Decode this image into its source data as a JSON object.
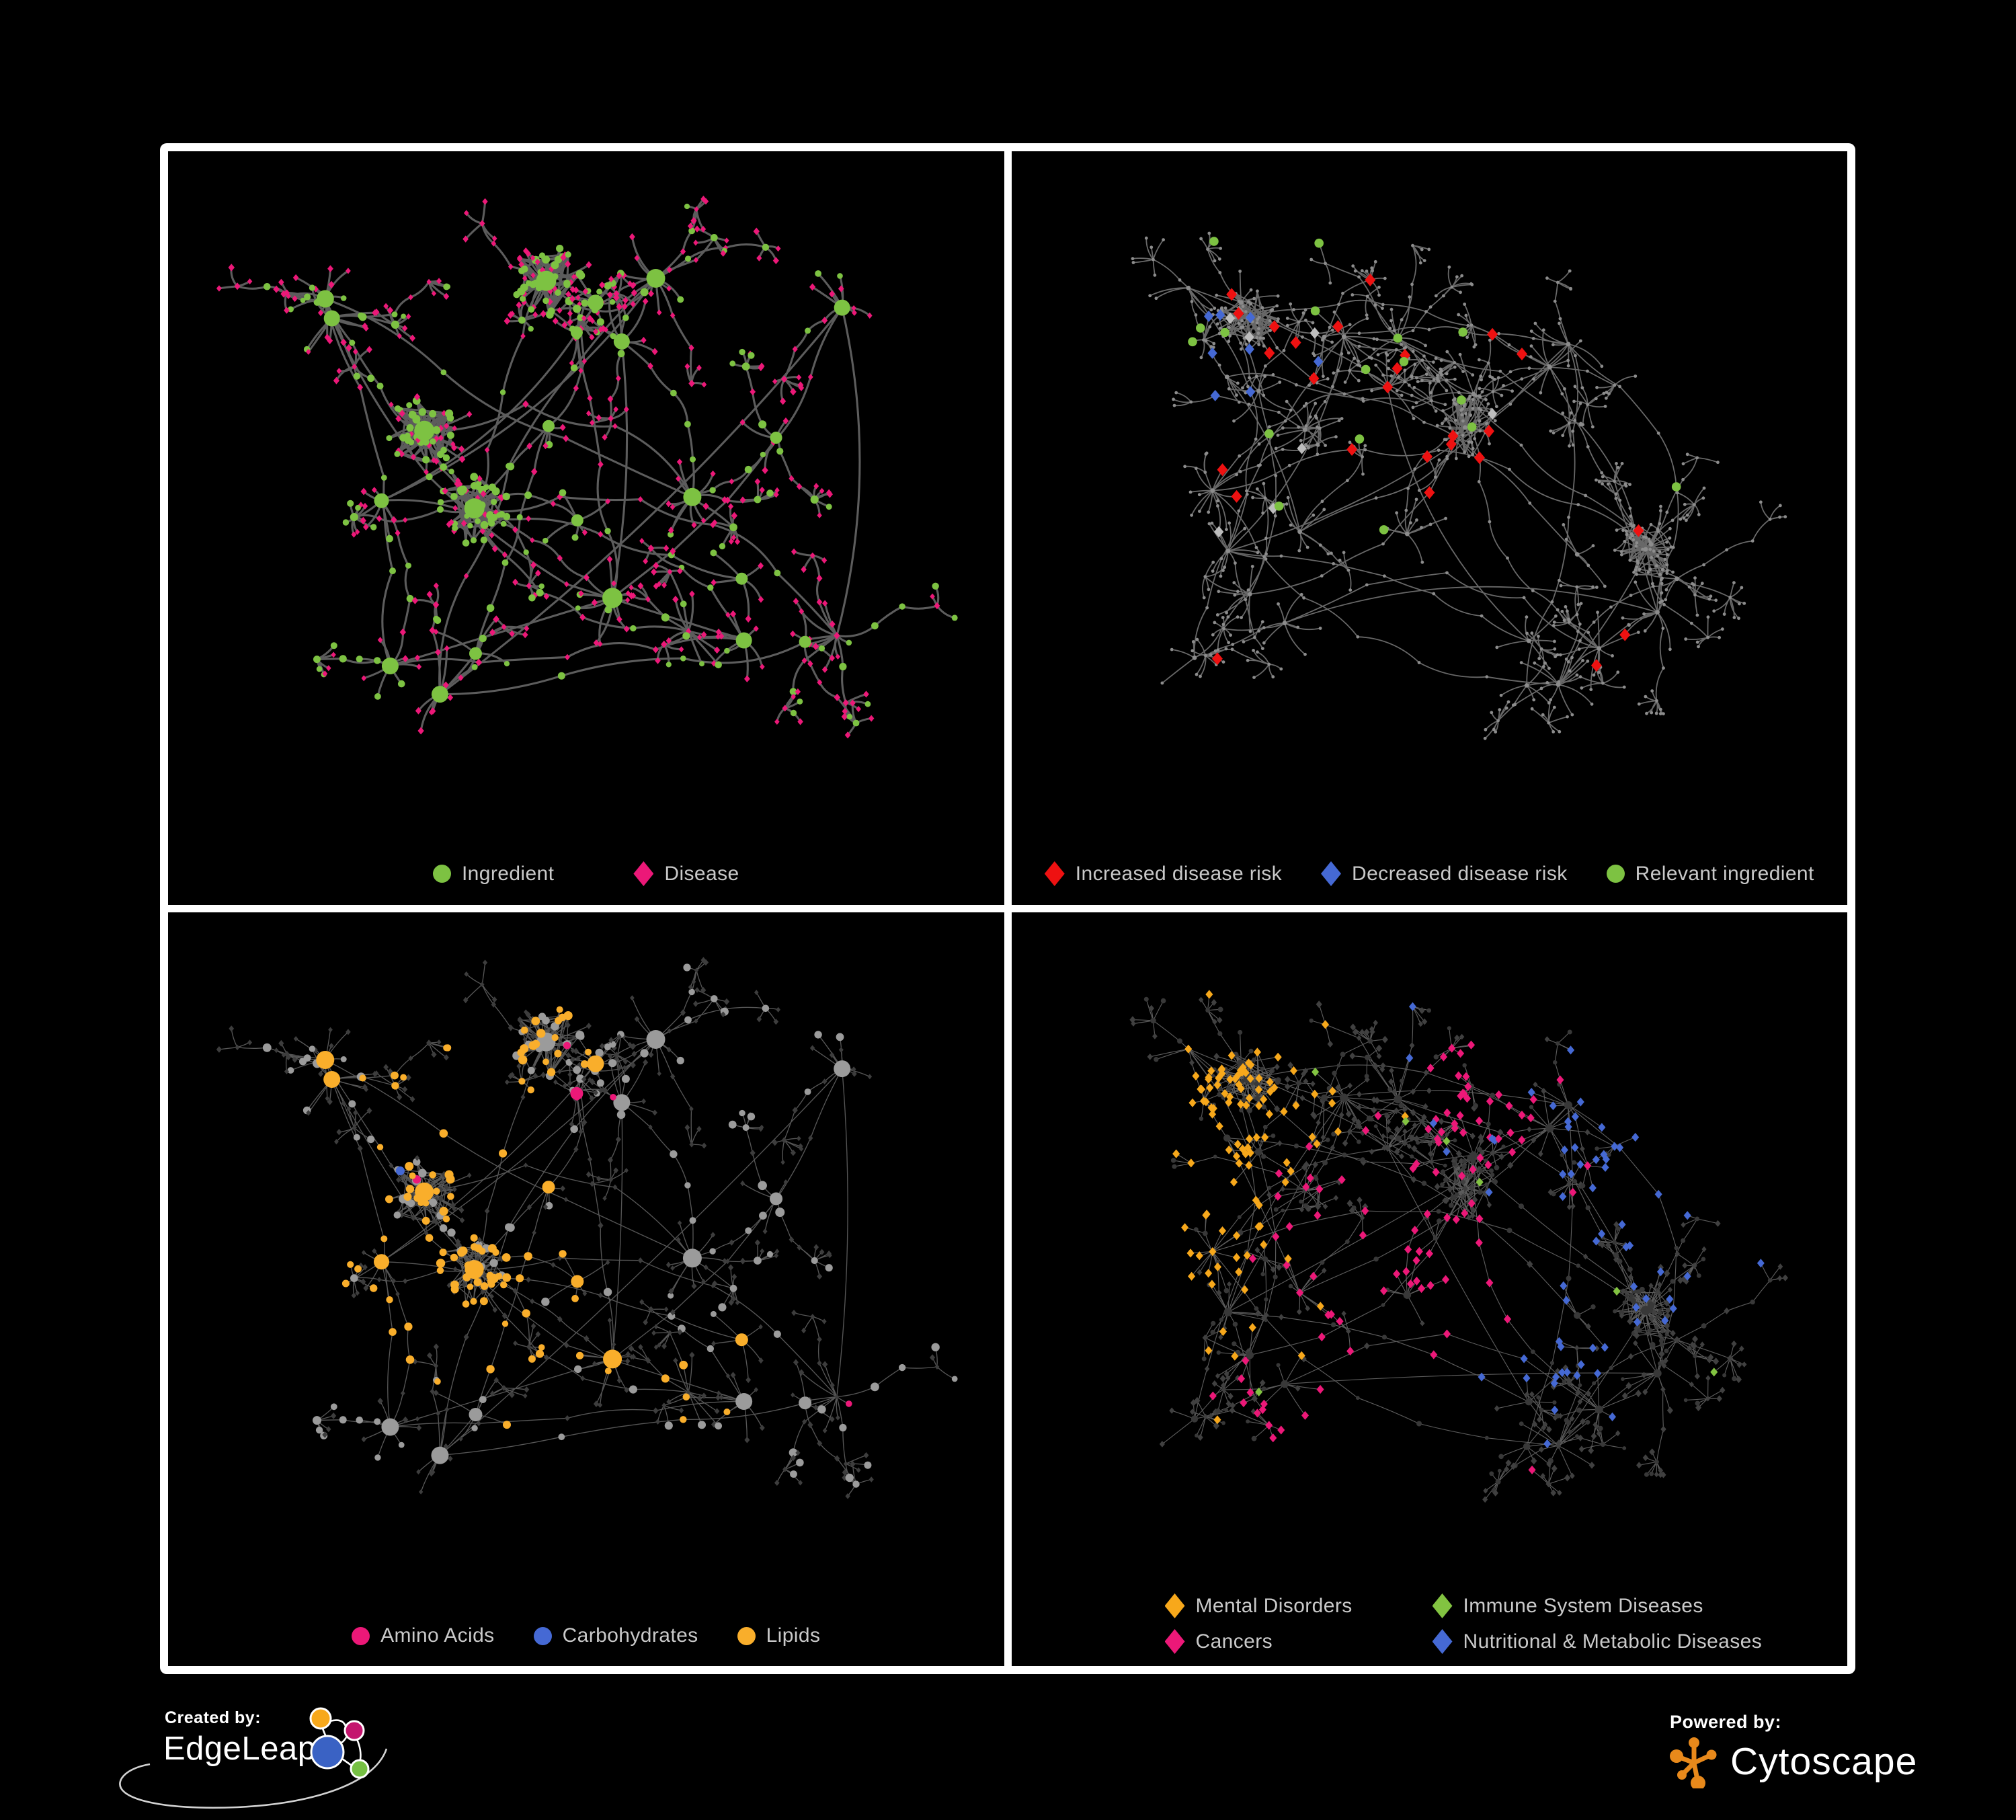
{
  "page": {
    "background": "#000000",
    "frame_color": "#ffffff"
  },
  "footer": {
    "created_by_label": "Created by:",
    "edgeleap_name": "EdgeLeap",
    "powered_by_label": "Powered by:",
    "cytoscape_name": "Cytoscape",
    "cytoscape_orange": "#E8891B",
    "edgeleap_logo_colors": {
      "orange": "#F7A81B",
      "magenta": "#C4156E",
      "blue": "#3A62C4",
      "green": "#76C043"
    }
  },
  "panels": [
    {
      "id": "ingredient-disease",
      "legend": {
        "layout": "row",
        "items": [
          {
            "label": "Ingredient",
            "shape": "circle",
            "color": "#7DC242"
          },
          {
            "label": "Disease",
            "shape": "diamond",
            "color": "#EC1878"
          }
        ]
      },
      "net": {
        "seed": 7,
        "anchors": 24,
        "chain": [
          2,
          4
        ],
        "cross": 8,
        "burst": [
          4,
          14
        ],
        "burstR": 72,
        "extend": 0.16,
        "fan": [
          3,
          8
        ],
        "hairballs": 3,
        "hair": [
          34,
          50
        ],
        "hairR": 54,
        "diamondProb": {
          "hub": 0.05,
          "sub": 0.5,
          "chain": 0.62,
          "leaf": 0.8,
          "hair": 0.45
        }
      },
      "paint": {
        "edge": {
          "color": "#676767",
          "width": 3.1,
          "opacity": 0.9,
          "curve": 0.45
        },
        "diamond": {
          "color": "#EC1878",
          "s": 4.9
        },
        "circle": {
          "color": "#7DC242",
          "hubBase": 6,
          "hubDeg": 0.5,
          "hubMax": 15,
          "r": {
            "sub": 5.2,
            "chain": 4.8,
            "leaf": 4.6,
            "hair": 5.1
          }
        }
      }
    },
    {
      "id": "disease-risk",
      "legend": {
        "layout": "row",
        "items": [
          {
            "label": "Increased disease risk",
            "shape": "diamond",
            "color": "#EE1111"
          },
          {
            "label": "Decreased disease risk",
            "shape": "diamond",
            "color": "#4569D4"
          },
          {
            "label": "Relevant ingredient",
            "shape": "circle",
            "color": "#7DC242"
          }
        ]
      },
      "net": {
        "seed": 13,
        "anchors": 30,
        "chain": [
          3,
          6
        ],
        "cross": 6,
        "burst": [
          3,
          12
        ],
        "burstR": 64,
        "extend": 0.22,
        "fan": [
          3,
          9
        ],
        "hairballs": 3,
        "hair": [
          30,
          44
        ],
        "hairR": 48,
        "diamondProb": {
          "hub": 0.25,
          "sub": 0.55,
          "chain": 0.6,
          "leaf": 0.78,
          "hair": 0.5
        }
      },
      "paint": {
        "edge": {
          "color": "#7B7B7B",
          "width": 1.8,
          "opacity": 0.85,
          "curve": 0.4
        },
        "base": {
          "color": "#8C8C8C",
          "r": 2.4,
          "hubR": 3.4
        },
        "highlights": [
          {
            "shape": "diamond",
            "color": "#EE1111",
            "size": 9.5,
            "count": 26,
            "focals": [
              [
                0.3,
                0.3,
                0.14
              ],
              [
                0.5,
                0.4,
                0.1
              ],
              [
                0.6,
                0.33,
                0.08
              ],
              [
                0.38,
                0.6,
                0.18
              ],
              [
                0.74,
                0.72,
                0.07
              ]
            ]
          },
          {
            "shape": "diamond",
            "color": "#4569D4",
            "size": 8.5,
            "count": 8,
            "focals": [
              [
                0.13,
                0.4,
                0.05
              ],
              [
                0.86,
                0.17,
                0.03
              ],
              [
                0.27,
                0.3,
                0.05
              ]
            ]
          },
          {
            "shape": "diamond",
            "color": "#BDBDBD",
            "size": 8.5,
            "count": 7,
            "focals": [
              [
                0.33,
                0.35,
                0.1
              ],
              [
                0.55,
                0.52,
                0.1
              ]
            ]
          },
          {
            "shape": "circle",
            "color": "#7DC242",
            "size": 6.8,
            "count": 17,
            "focals": [
              [
                0.28,
                0.32,
                0.15
              ],
              [
                0.52,
                0.46,
                0.13
              ],
              [
                0.14,
                0.52,
                0.07
              ],
              [
                0.79,
                0.4,
                0.09
              ]
            ]
          }
        ]
      }
    },
    {
      "id": "macronutrients",
      "legend": {
        "layout": "row",
        "items": [
          {
            "label": "Amino Acids",
            "shape": "circle",
            "color": "#EC1878"
          },
          {
            "label": "Carbohydrates",
            "shape": "circle",
            "color": "#4569D4"
          },
          {
            "label": "Lipids",
            "shape": "circle",
            "color": "#F9AE2B"
          }
        ]
      },
      "net": {
        "seed": 7,
        "anchors": 24,
        "chain": [
          2,
          4
        ],
        "cross": 8,
        "burst": [
          4,
          14
        ],
        "burstR": 72,
        "extend": 0.16,
        "fan": [
          3,
          8
        ],
        "hairballs": 3,
        "hair": [
          34,
          50
        ],
        "hairR": 54,
        "diamondProb": {
          "hub": 0.05,
          "sub": 0.5,
          "chain": 0.62,
          "leaf": 0.8,
          "hair": 0.45
        }
      },
      "paint": {
        "edge": {
          "color": "#ABABAB",
          "width": 1.35,
          "opacity": 0.5,
          "curve": 0.18
        },
        "diamond": {
          "color": "#3D3D3D",
          "s": 4.3
        },
        "circle": {
          "color": "#9B9B9B",
          "hubBase": 6.5,
          "hubDeg": 0.5,
          "hubMax": 14,
          "r": {
            "sub": 5.8,
            "chain": 5.4,
            "leaf": 5.2,
            "hair": 5.7
          },
          "cats": [
            {
              "color": "#F9AE2B",
              "scale": 1.15,
              "focals": [
                [
                  0.34,
                  0.2,
                  0.1
                ],
                [
                  0.3,
                  0.5,
                  0.08
                ],
                [
                  0.44,
                  0.58,
                  0.06
                ],
                [
                  0.65,
                  0.62,
                  0.05
                ],
                [
                  0.27,
                  0.05,
                  0.04
                ]
              ]
            },
            {
              "color": "#4569D4",
              "scale": 0.9,
              "focals": [
                [
                  0.37,
                  0.26,
                  0.05
                ],
                [
                  0.2,
                  0.42,
                  0.03
                ],
                [
                  0.86,
                  0.62,
                  0.03
                ],
                [
                  0.02,
                  0.28,
                  0.02
                ]
              ]
            },
            {
              "color": "#EC1878",
              "flat": 0.06,
              "scale": 0.8,
              "focals": [
                [
                  0.12,
                  0.56,
                  0.05
                ],
                [
                  0.52,
                  0.74,
                  0.05
                ],
                [
                  0.1,
                  0.3,
                  0.04
                ],
                [
                  0.55,
                  0.02,
                  0.03
                ],
                [
                  0.95,
                  0.3,
                  0.04
                ]
              ]
            }
          ]
        }
      }
    },
    {
      "id": "disease-classes",
      "legend": {
        "layout": "grid",
        "items": [
          {
            "label": "Mental Disorders",
            "shape": "diamond",
            "color": "#F7A81B"
          },
          {
            "label": "Immune System Diseases",
            "shape": "diamond",
            "color": "#82C341"
          },
          {
            "label": "Cancers",
            "shape": "diamond",
            "color": "#EC1878"
          },
          {
            "label": "Nutritional & Metabolic Diseases",
            "shape": "diamond",
            "color": "#4569D4"
          }
        ]
      },
      "net": {
        "seed": 13,
        "anchors": 30,
        "chain": [
          3,
          6
        ],
        "cross": 6,
        "burst": [
          3,
          12
        ],
        "burstR": 64,
        "extend": 0.22,
        "fan": [
          3,
          9
        ],
        "hairballs": 3,
        "hair": [
          30,
          44
        ],
        "hairR": 48,
        "diamondProb": {
          "hub": 0.25,
          "sub": 0.55,
          "chain": 0.6,
          "leaf": 0.78,
          "hair": 0.5
        }
      },
      "paint": {
        "edge": {
          "color": "#737373",
          "width": 1.15,
          "opacity": 0.8,
          "curve": 0.05
        },
        "circle": {
          "color": "#383838",
          "hubBase": 4.5,
          "hubDeg": 0.12,
          "hubMax": 7,
          "r": {
            "sub": 3.6,
            "chain": 3.4,
            "leaf": 3.3,
            "hair": 3.6
          }
        },
        "diamond": {
          "color": "#404040",
          "s": 4.8,
          "catSize": 6.6,
          "cats": [
            {
              "color": "#F7A81B",
              "scale": 1.25,
              "focals": [
                [
                  0.16,
                  0.4,
                  0.1
                ],
                [
                  0.3,
                  0.09,
                  0.05
                ],
                [
                  0.13,
                  0.61,
                  0.05
                ],
                [
                  0.24,
                  0.28,
                  0.06
                ]
              ]
            },
            {
              "color": "#EC1878",
              "scale": 1.1,
              "focals": [
                [
                  0.46,
                  0.47,
                  0.08
                ],
                [
                  0.57,
                  0.22,
                  0.05
                ],
                [
                  0.33,
                  0.67,
                  0.04
                ],
                [
                  0.63,
                  0.83,
                  0.035
                ],
                [
                  0.95,
                  0.25,
                  0.04
                ]
              ]
            },
            {
              "color": "#4569D4",
              "scale": 1.0,
              "focals": [
                [
                  0.62,
                  0.54,
                  0.06
                ],
                [
                  0.74,
                  0.3,
                  0.09
                ],
                [
                  0.87,
                  0.15,
                  0.05
                ],
                [
                  0.32,
                  0.81,
                  0.05
                ],
                [
                  0.56,
                  0.04,
                  0.06
                ],
                [
                  0.93,
                  0.38,
                  0.04
                ],
                [
                  0.48,
                  0.93,
                  0.04
                ],
                [
                  0.06,
                  0.1,
                  0.04
                ]
              ]
            },
            {
              "color": "#82C341",
              "flat": 0.013,
              "focals": []
            }
          ]
        }
      }
    }
  ]
}
